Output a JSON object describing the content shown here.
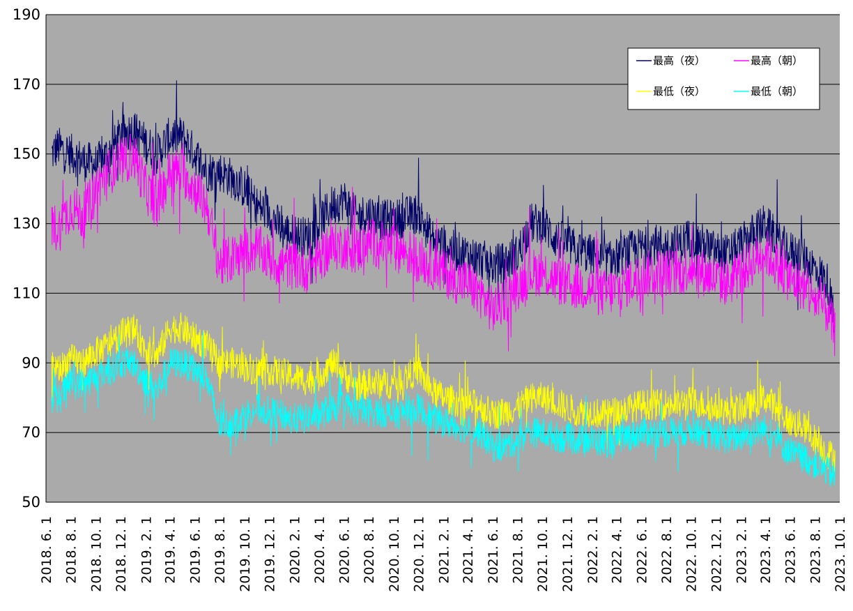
{
  "chart_data": {
    "type": "line",
    "title": "",
    "xlabel": "",
    "ylabel": "",
    "ylim": [
      50,
      190
    ],
    "yticks": [
      50,
      70,
      90,
      110,
      130,
      150,
      170,
      190
    ],
    "x_ticks": [
      "2018. 6. 1",
      "2018. 8. 1",
      "2018. 10. 1",
      "2018. 12. 1",
      "2019. 2. 1",
      "2019. 4. 1",
      "2019. 6. 1",
      "2019. 8. 1",
      "2019. 10. 1",
      "2019. 12. 1",
      "2020. 2. 1",
      "2020. 4. 1",
      "2020. 6. 1",
      "2020. 8. 1",
      "2020. 10. 1",
      "2020. 12. 1",
      "2021. 2. 1",
      "2021. 4. 1",
      "2021. 6. 1",
      "2021. 8. 1",
      "2021. 10. 1",
      "2021. 12. 1",
      "2022. 2. 1",
      "2022. 4. 1",
      "2022. 6. 1",
      "2022. 8. 1",
      "2022. 10. 1",
      "2022. 12. 1",
      "2023. 2. 1",
      "2023. 4. 1",
      "2023. 6. 1",
      "2023. 8. 1",
      "2023. 10. 1"
    ],
    "x": [
      "2018. 6. 15",
      "2018. 7. 1",
      "2018. 8. 1",
      "2018. 9. 1",
      "2018. 10. 1",
      "2018. 11. 1",
      "2018. 12. 1",
      "2019. 1. 1",
      "2019. 2. 1",
      "2019. 3. 1",
      "2019. 4. 1",
      "2019. 5. 1",
      "2019. 6. 1",
      "2019. 7. 1",
      "2019. 8. 1",
      "2019. 9. 1",
      "2019. 10. 1",
      "2019. 11. 1",
      "2019. 12. 1",
      "2020. 1. 1",
      "2020. 2. 1",
      "2020. 3. 1",
      "2020. 4. 1",
      "2020. 5. 1",
      "2020. 6. 1",
      "2020. 7. 1",
      "2020. 8. 1",
      "2020. 9. 1",
      "2020. 10. 1",
      "2020. 11. 1",
      "2020. 12. 1",
      "2021. 1. 1",
      "2021. 2. 1",
      "2021. 3. 1",
      "2021. 4. 1",
      "2021. 5. 1",
      "2021. 6. 1",
      "2021. 7. 1",
      "2021. 8. 1",
      "2021. 9. 1",
      "2021. 10. 1",
      "2021. 11. 1",
      "2021. 12. 1",
      "2022. 1. 1",
      "2022. 2. 1",
      "2022. 3. 1",
      "2022. 4. 1",
      "2022. 5. 1",
      "2022. 6. 1",
      "2022. 7. 1",
      "2022. 8. 1",
      "2022. 9. 1",
      "2022. 10. 1",
      "2022. 11. 1",
      "2022. 12. 1",
      "2023. 1. 1",
      "2023. 2. 1",
      "2023. 3. 1",
      "2023. 4. 1",
      "2023. 5. 1",
      "2023. 6. 1",
      "2023. 7. 1",
      "2023. 8. 1",
      "2023. 9. 1",
      "2023. 9. 20"
    ],
    "series": [
      {
        "name": "最高（夜）",
        "color": "#000066",
        "values": [
          150,
          152,
          150,
          148,
          147,
          150,
          155,
          157,
          153,
          150,
          155,
          155,
          150,
          145,
          145,
          143,
          140,
          135,
          133,
          128,
          127,
          126,
          130,
          135,
          137,
          132,
          133,
          131,
          131,
          132,
          133,
          126,
          124,
          122,
          121,
          120,
          118,
          119,
          121,
          130,
          130,
          126,
          124,
          122,
          121,
          119,
          120,
          122,
          123,
          124,
          124,
          124,
          126,
          124,
          122,
          121,
          124,
          127,
          130,
          125,
          122,
          121,
          117,
          113,
          100
        ]
      },
      {
        "name": "最高（朝）",
        "color": "#ff00ff",
        "values": [
          130,
          128,
          135,
          132,
          140,
          145,
          147,
          150,
          140,
          135,
          145,
          145,
          140,
          135,
          118,
          120,
          122,
          123,
          120,
          118,
          118,
          117,
          120,
          123,
          124,
          122,
          125,
          124,
          123,
          122,
          120,
          118,
          116,
          114,
          113,
          110,
          105,
          108,
          112,
          116,
          116,
          114,
          112,
          112,
          111,
          110,
          111,
          113,
          115,
          116,
          116,
          116,
          118,
          116,
          114,
          113,
          116,
          119,
          122,
          118,
          114,
          112,
          108,
          105,
          98
        ]
      },
      {
        "name": "最低（夜）",
        "color": "#ffff00",
        "values": [
          90,
          88,
          91,
          90,
          93,
          95,
          98,
          100,
          94,
          92,
          100,
          100,
          97,
          95,
          90,
          90,
          89,
          88,
          88,
          87,
          86,
          85,
          86,
          90,
          87,
          83,
          84,
          84,
          84,
          86,
          88,
          82,
          80,
          79,
          78,
          78,
          75,
          76,
          77,
          80,
          80,
          79,
          77,
          76,
          76,
          75,
          76,
          77,
          78,
          78,
          78,
          78,
          79,
          78,
          77,
          76,
          77,
          78,
          80,
          77,
          73,
          72,
          68,
          64,
          63
        ]
      },
      {
        "name": "最低（朝）",
        "color": "#00ffff",
        "values": [
          80,
          79,
          85,
          84,
          86,
          88,
          90,
          90,
          85,
          82,
          90,
          90,
          88,
          85,
          72,
          73,
          75,
          77,
          76,
          75,
          74,
          74,
          75,
          77,
          78,
          76,
          76,
          76,
          75,
          76,
          77,
          74,
          73,
          72,
          71,
          70,
          66,
          66,
          68,
          70,
          70,
          69,
          68,
          68,
          68,
          67,
          68,
          69,
          70,
          70,
          70,
          70,
          71,
          70,
          69,
          68,
          69,
          70,
          71,
          68,
          64,
          63,
          61,
          59,
          57
        ]
      }
    ],
    "grid": true,
    "legend": {
      "position": "top-right",
      "entries": [
        "最高（夜）",
        "最高（朝）",
        "最低（夜）",
        "最低（朝）"
      ]
    },
    "colors": {
      "plot_background": "#aaaaaa",
      "gridlines": "#000000"
    }
  }
}
